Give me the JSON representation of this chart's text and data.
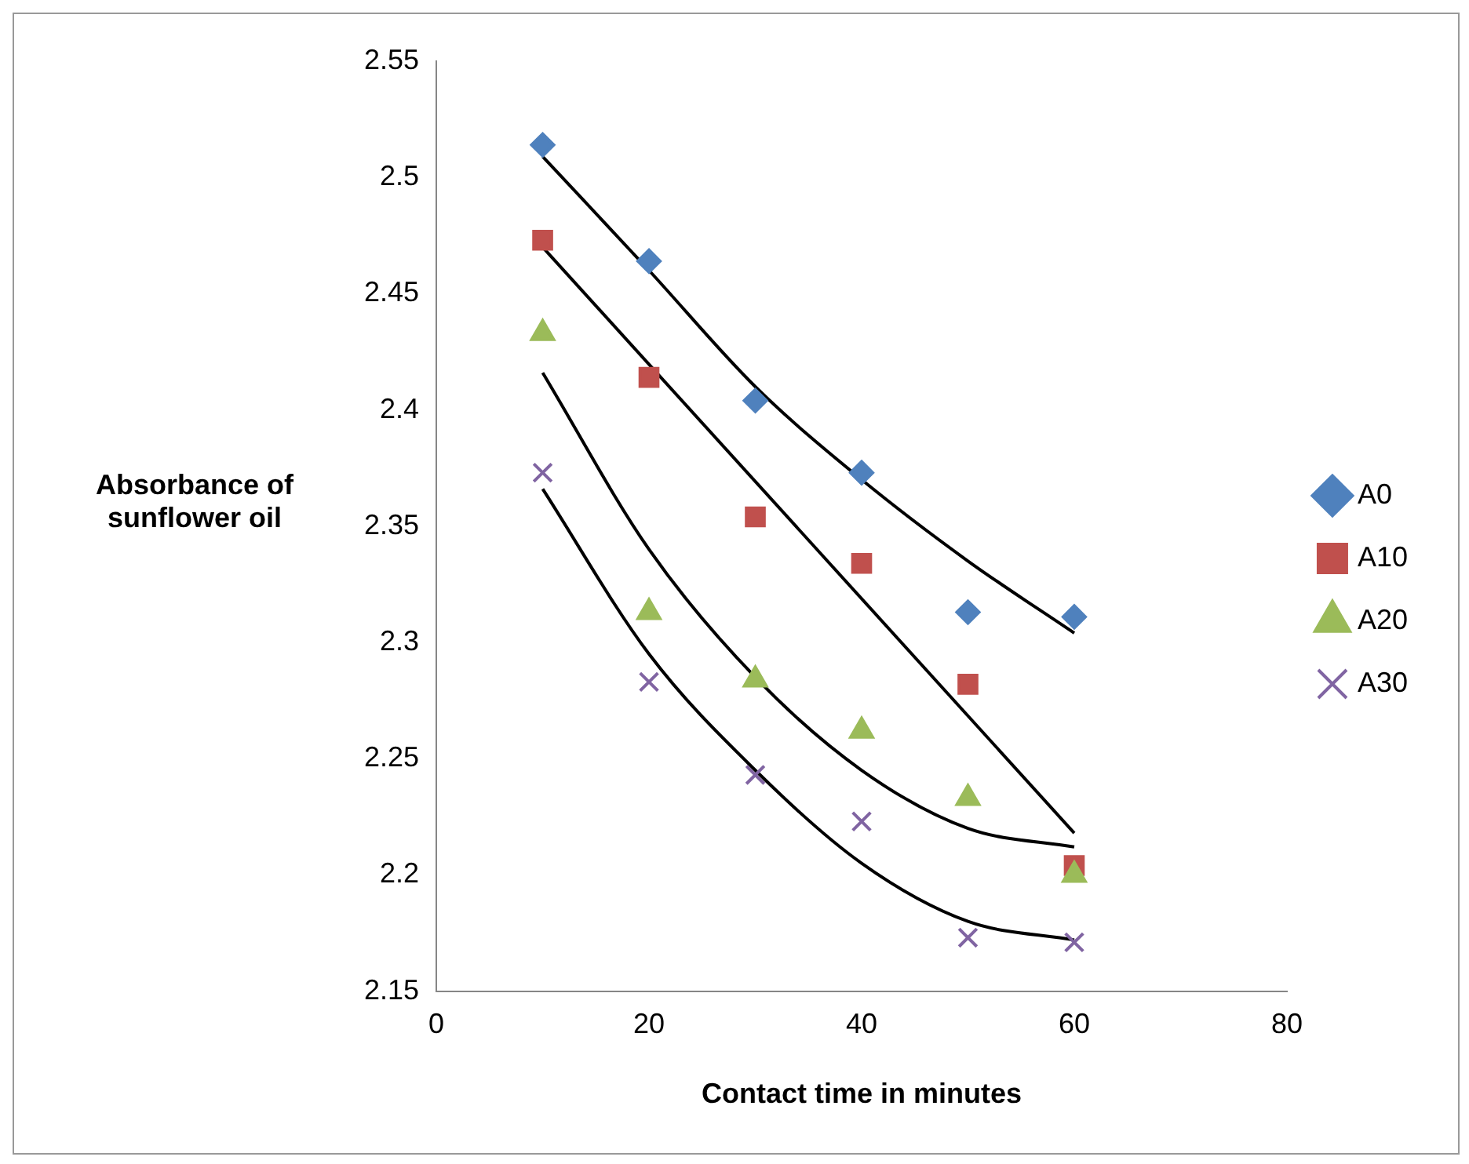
{
  "chart_data": {
    "type": "scatter",
    "xlabel": "Contact time in minutes",
    "ylabel": "Absorbance of sunflower oil",
    "xlim": [
      0,
      80
    ],
    "xticks": [
      0,
      20,
      40,
      60,
      80
    ],
    "ylim": [
      2.15,
      2.55
    ],
    "yticks": [
      2.15,
      2.2,
      2.25,
      2.3,
      2.35,
      2.4,
      2.45,
      2.5,
      2.55
    ],
    "grid": false,
    "legend": "right",
    "series": [
      {
        "name": "A0",
        "color": "#4f81bd",
        "marker": "diamond",
        "x": [
          10,
          20,
          30,
          40,
          50,
          60
        ],
        "values": [
          2.514,
          2.464,
          2.404,
          2.373,
          2.313,
          2.311
        ]
      },
      {
        "name": "A10",
        "color": "#c0504d",
        "marker": "square",
        "x": [
          10,
          20,
          30,
          40,
          50,
          60
        ],
        "values": [
          2.473,
          2.414,
          2.354,
          2.334,
          2.282,
          2.204
        ]
      },
      {
        "name": "A20",
        "color": "#9bbb59",
        "marker": "triangle",
        "x": [
          10,
          20,
          30,
          40,
          50,
          60
        ],
        "values": [
          2.433,
          2.313,
          2.284,
          2.262,
          2.233,
          2.2
        ]
      },
      {
        "name": "A30",
        "color": "#8064a2",
        "marker": "cross",
        "x": [
          10,
          20,
          30,
          40,
          50,
          60
        ],
        "values": [
          2.373,
          2.283,
          2.243,
          2.223,
          2.173,
          2.171
        ]
      },
      {
        "type": "line",
        "color": "#000000",
        "marker": "none",
        "x": [
          10,
          20,
          30,
          40,
          50,
          60
        ],
        "values": [
          2.509,
          2.46,
          2.41,
          2.37,
          2.335,
          2.304
        ]
      },
      {
        "type": "line",
        "color": "#000000",
        "marker": "none",
        "x": [
          10,
          60
        ],
        "values": [
          2.47,
          2.218
        ]
      },
      {
        "type": "line",
        "color": "#000000",
        "marker": "none",
        "x": [
          10,
          20,
          30,
          40,
          50,
          60
        ],
        "values": [
          2.416,
          2.34,
          2.285,
          2.245,
          2.22,
          2.212
        ]
      },
      {
        "type": "line",
        "color": "#000000",
        "marker": "none",
        "x": [
          10,
          20,
          30,
          40,
          50,
          60
        ],
        "values": [
          2.366,
          2.295,
          2.245,
          2.205,
          2.18,
          2.172
        ]
      }
    ]
  }
}
